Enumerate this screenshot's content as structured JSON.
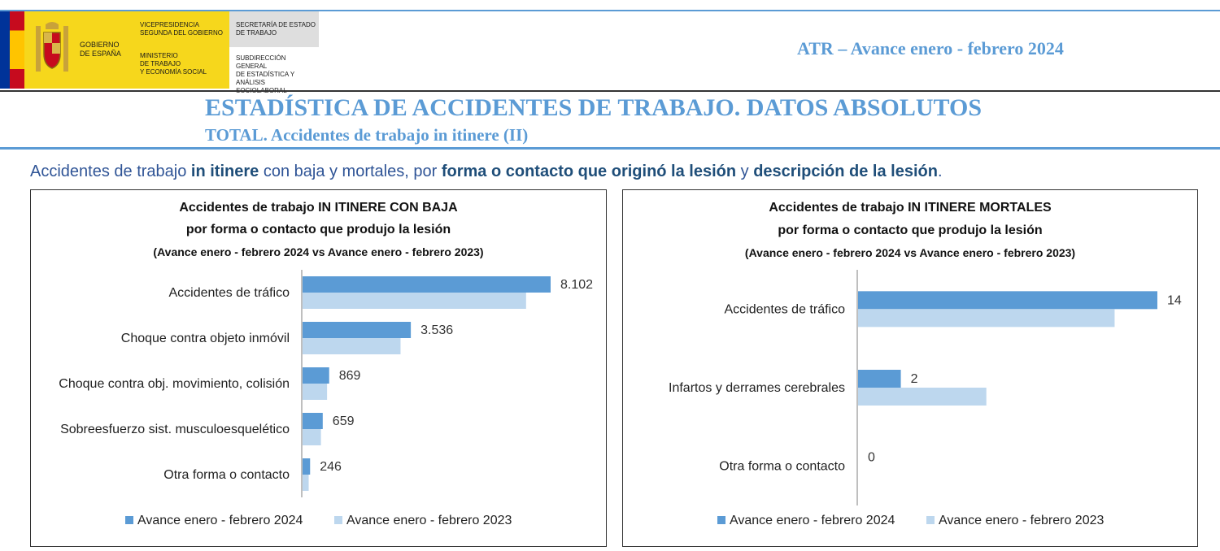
{
  "header": {
    "gov_name": [
      "GOBIERNO",
      "DE ESPAÑA"
    ],
    "vicepresidencia": [
      "VICEPRESIDENCIA",
      "SEGUNDA DEL GOBIERNO"
    ],
    "ministerio": [
      "MINISTERIO",
      "DE TRABAJO",
      "Y ECONOMÍA SOCIAL"
    ],
    "secretaria": [
      "SECRETARÍA DE ESTADO",
      "DE TRABAJO"
    ],
    "subdireccion": [
      "SUBDIRECCIÓN GENERAL",
      "DE ESTADÍSTICA Y",
      "ANÁLISIS SOCIOLABORAL"
    ],
    "report": "ATR – Avance enero - febrero 2024"
  },
  "title": "ESTADÍSTICA DE ACCIDENTES DE TRABAJO. DATOS ABSOLUTOS",
  "subtitle": "TOTAL. Accidentes de trabajo in itinere (II)",
  "lead": {
    "t1": "Accidentes de trabajo ",
    "b1": "in itinere",
    "t2": " con baja y mortales, por ",
    "b2": "forma o contacto que originó la lesión",
    "t3": " y ",
    "b3": "descripción de la lesión",
    "t4": "."
  },
  "colors": {
    "accent": "#5b9bd5",
    "series_2024": "#5b9bd5",
    "series_2023": "#bdd7ee"
  },
  "chart_data": [
    {
      "type": "bar",
      "orientation": "horizontal",
      "title": [
        "Accidentes de trabajo IN ITINERE CON BAJA",
        "por forma o contacto que produjo la lesión",
        "(Avance enero - febrero 2024 vs Avance enero - febrero 2023)"
      ],
      "categories": [
        "Accidentes de tráfico",
        "Choque contra objeto inmóvil",
        "Choque contra obj. movimiento, colisión",
        "Sobreesfuerzo sist. musculoesquelético",
        "Otra forma o contacto"
      ],
      "series": [
        {
          "name": "Avance enero - febrero 2024",
          "values": [
            8102,
            3536,
            869,
            659,
            246
          ],
          "labels": [
            "8.102",
            "3.536",
            "869",
            "659",
            "246"
          ]
        },
        {
          "name": "Avance enero - febrero 2023",
          "values": [
            7300,
            3200,
            800,
            600,
            200
          ]
        }
      ],
      "xlim": [
        0,
        8102
      ],
      "legend": "bottom",
      "grid": false
    },
    {
      "type": "bar",
      "orientation": "horizontal",
      "title": [
        "Accidentes de trabajo IN ITINERE MORTALES",
        "por forma o contacto que produjo la lesión",
        "(Avance enero - febrero 2024 vs Avance enero - febrero 2023)"
      ],
      "categories": [
        "Accidentes de tráfico",
        "Infartos y derrames cerebrales",
        "Otra forma o contacto"
      ],
      "series": [
        {
          "name": "Avance enero - febrero 2024",
          "values": [
            14,
            2,
            0
          ],
          "labels": [
            "14",
            "2",
            "0"
          ]
        },
        {
          "name": "Avance enero - febrero 2023",
          "values": [
            12,
            6,
            0
          ]
        }
      ],
      "xlim": [
        0,
        14
      ],
      "legend": "bottom",
      "grid": false
    }
  ]
}
